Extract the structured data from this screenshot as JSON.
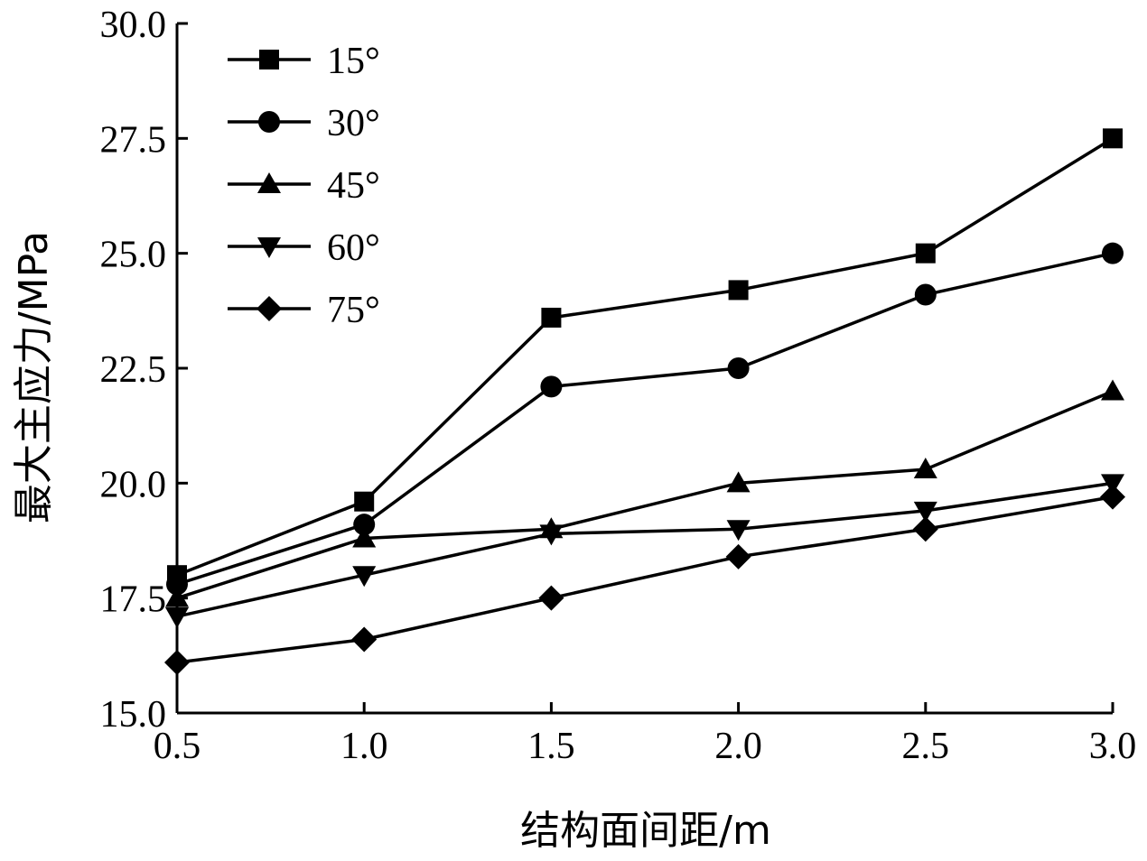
{
  "chart_data": {
    "type": "line",
    "title": "",
    "xlabel": "结构面间距/m",
    "ylabel": "最大主应力/MPa",
    "x": [
      0.5,
      1.0,
      1.5,
      2.0,
      2.5,
      3.0
    ],
    "xlim": [
      0.5,
      3.0
    ],
    "ylim": [
      15.0,
      30.0
    ],
    "x_ticks": [
      "0.5",
      "1.0",
      "1.5",
      "2.0",
      "2.5",
      "3.0"
    ],
    "y_ticks": [
      "15.0",
      "17.5",
      "20.0",
      "22.5",
      "25.0",
      "27.5",
      "30.0"
    ],
    "grid": false,
    "legend_position": "top-left",
    "series": [
      {
        "name": "15°",
        "marker": "square",
        "values": [
          18.0,
          19.6,
          23.6,
          24.2,
          25.0,
          27.5
        ]
      },
      {
        "name": "30°",
        "marker": "circle",
        "values": [
          17.8,
          19.1,
          22.1,
          22.5,
          24.1,
          25.0
        ]
      },
      {
        "name": "45°",
        "marker": "triangle-up",
        "values": [
          17.5,
          18.8,
          19.0,
          20.0,
          20.3,
          22.0
        ]
      },
      {
        "name": "60°",
        "marker": "triangle-down",
        "values": [
          17.1,
          18.0,
          18.9,
          19.0,
          19.4,
          20.0
        ]
      },
      {
        "name": "75°",
        "marker": "diamond",
        "values": [
          16.1,
          16.6,
          17.5,
          18.4,
          19.0,
          19.7
        ]
      }
    ]
  }
}
